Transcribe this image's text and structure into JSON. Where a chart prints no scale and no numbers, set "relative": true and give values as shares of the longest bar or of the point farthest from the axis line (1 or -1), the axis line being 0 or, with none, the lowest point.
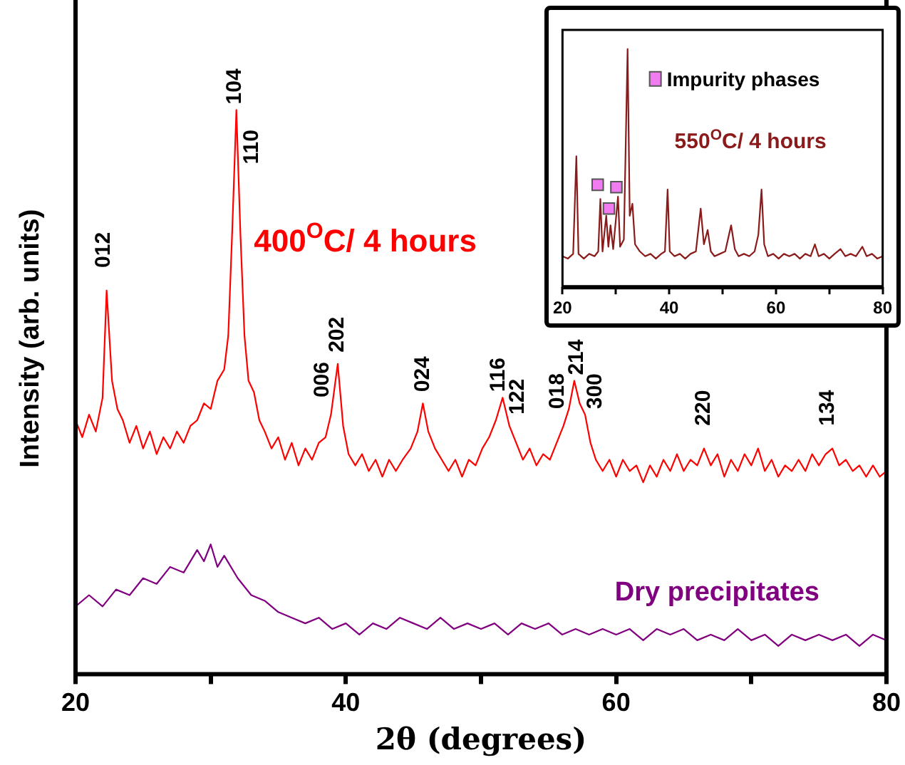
{
  "chart_data": [
    {
      "type": "line",
      "relative": true,
      "xlabel": "2θ (degrees)",
      "ylabel": "Intensity (arb. units)",
      "xlim": [
        20,
        80
      ],
      "xticks": [
        20,
        {
          "value": 30,
          "label": null
        },
        40,
        {
          "value": 50,
          "label": null
        },
        60,
        {
          "value": 70,
          "label": null
        },
        80
      ],
      "legend": false,
      "series": [
        {
          "name": "400$^{O}$C/ 4 hours",
          "color": "#ff0000",
          "x": [
            20,
            20.5,
            21,
            21.5,
            22,
            22.3,
            22.7,
            23.1,
            23.5,
            24,
            24.5,
            25,
            25.5,
            26,
            26.5,
            27,
            27.5,
            28,
            28.5,
            29,
            29.5,
            30,
            30.5,
            31,
            31.3,
            31.6,
            31.9,
            32.2,
            32.5,
            32.8,
            33.2,
            33.6,
            34,
            34.5,
            35,
            35.5,
            36,
            36.5,
            37,
            37.5,
            38,
            38.5,
            38.9,
            39.4,
            39.8,
            40.2,
            40.7,
            41.2,
            41.7,
            42.2,
            42.7,
            43.2,
            43.7,
            44.2,
            44.8,
            45.3,
            45.7,
            46.1,
            46.6,
            47.1,
            47.6,
            48.1,
            48.6,
            49.1,
            49.6,
            50.1,
            50.6,
            51.1,
            51.6,
            52.1,
            52.6,
            53.1,
            53.6,
            54.1,
            54.6,
            55.1,
            55.6,
            56.1,
            56.5,
            56.9,
            57.3,
            57.7,
            58.1,
            58.5,
            59,
            59.5,
            60,
            60.5,
            61,
            61.5,
            62,
            62.5,
            63,
            63.5,
            64,
            64.5,
            65,
            65.5,
            66,
            66.5,
            67,
            67.5,
            68,
            68.5,
            69,
            69.5,
            70,
            70.5,
            71,
            71.5,
            72,
            72.5,
            73,
            73.5,
            74,
            74.5,
            75,
            75.5,
            76,
            76.5,
            77,
            77.5,
            78,
            78.5,
            79,
            79.5,
            80
          ],
          "values": [
            0.45,
            0.42,
            0.46,
            0.43,
            0.49,
            0.68,
            0.52,
            0.47,
            0.45,
            0.41,
            0.44,
            0.4,
            0.43,
            0.39,
            0.42,
            0.4,
            0.43,
            0.41,
            0.44,
            0.45,
            0.48,
            0.47,
            0.52,
            0.54,
            0.6,
            0.79,
            1.0,
            0.78,
            0.6,
            0.52,
            0.5,
            0.45,
            0.43,
            0.4,
            0.42,
            0.38,
            0.41,
            0.37,
            0.4,
            0.38,
            0.41,
            0.42,
            0.46,
            0.55,
            0.44,
            0.39,
            0.37,
            0.39,
            0.36,
            0.38,
            0.35,
            0.38,
            0.36,
            0.38,
            0.4,
            0.43,
            0.48,
            0.43,
            0.4,
            0.38,
            0.36,
            0.38,
            0.35,
            0.38,
            0.37,
            0.4,
            0.42,
            0.45,
            0.49,
            0.44,
            0.41,
            0.38,
            0.4,
            0.37,
            0.39,
            0.38,
            0.41,
            0.44,
            0.47,
            0.52,
            0.48,
            0.46,
            0.41,
            0.38,
            0.36,
            0.38,
            0.35,
            0.38,
            0.36,
            0.37,
            0.34,
            0.37,
            0.35,
            0.38,
            0.36,
            0.39,
            0.36,
            0.38,
            0.37,
            0.4,
            0.37,
            0.39,
            0.35,
            0.38,
            0.36,
            0.39,
            0.37,
            0.4,
            0.36,
            0.38,
            0.35,
            0.37,
            0.36,
            0.38,
            0.36,
            0.39,
            0.37,
            0.39,
            0.4,
            0.37,
            0.38,
            0.36,
            0.37,
            0.35,
            0.37,
            0.35,
            0.36
          ]
        },
        {
          "name": "Dry precipitates",
          "color": "#800080",
          "x": [
            20,
            21,
            22,
            23,
            24,
            25,
            26,
            27,
            28,
            29,
            29.5,
            30,
            30.5,
            31,
            32,
            33,
            34,
            35,
            36,
            37,
            38,
            39,
            40,
            41,
            42,
            43,
            44,
            45,
            46,
            47,
            48,
            49,
            50,
            51,
            52,
            53,
            54,
            55,
            56,
            57,
            58,
            59,
            60,
            61,
            62,
            63,
            64,
            65,
            66,
            67,
            68,
            69,
            70,
            71,
            72,
            73,
            74,
            75,
            76,
            77,
            78,
            79,
            80
          ],
          "values": [
            0.12,
            0.14,
            0.12,
            0.15,
            0.14,
            0.17,
            0.16,
            0.19,
            0.18,
            0.22,
            0.2,
            0.23,
            0.19,
            0.21,
            0.17,
            0.14,
            0.13,
            0.11,
            0.1,
            0.09,
            0.1,
            0.08,
            0.09,
            0.07,
            0.09,
            0.08,
            0.1,
            0.09,
            0.08,
            0.1,
            0.08,
            0.09,
            0.08,
            0.09,
            0.07,
            0.09,
            0.08,
            0.09,
            0.07,
            0.08,
            0.07,
            0.08,
            0.07,
            0.08,
            0.06,
            0.08,
            0.07,
            0.08,
            0.06,
            0.07,
            0.06,
            0.08,
            0.06,
            0.07,
            0.05,
            0.07,
            0.06,
            0.07,
            0.06,
            0.07,
            0.05,
            0.07,
            0.06
          ]
        }
      ],
      "annotations": [
        {
          "text": "012",
          "x": 22.3,
          "y": 0.68
        },
        {
          "text": "104",
          "x": 31.9,
          "y": 1.0
        },
        {
          "text": "110",
          "x": 31.9,
          "y": 1.0
        },
        {
          "text": "006",
          "x": 38.9,
          "y": 0.46
        },
        {
          "text": "202",
          "x": 39.4,
          "y": 0.55
        },
        {
          "text": "024",
          "x": 45.7,
          "y": 0.48
        },
        {
          "text": "116",
          "x": 51.6,
          "y": 0.49
        },
        {
          "text": "122",
          "x": 52.1,
          "y": 0.44
        },
        {
          "text": "018",
          "x": 56.5,
          "y": 0.47
        },
        {
          "text": "214",
          "x": 56.9,
          "y": 0.52
        },
        {
          "text": "300",
          "x": 57.3,
          "y": 0.48
        },
        {
          "text": "220",
          "x": 66.5,
          "y": 0.4
        },
        {
          "text": "134",
          "x": 76,
          "y": 0.4
        }
      ]
    },
    {
      "type": "line",
      "relative": true,
      "xlim": [
        20,
        80
      ],
      "xticks": [
        20,
        {
          "value": 30,
          "label": null
        },
        40,
        {
          "value": 50,
          "label": null
        },
        60,
        {
          "value": 70,
          "label": null
        },
        80
      ],
      "legend": "top right",
      "series": [
        {
          "name": "550$^{O}$C/ 4 hours",
          "color": "#8b1a1a",
          "x": [
            20,
            21,
            22,
            22.6,
            23,
            24,
            25,
            26,
            26.7,
            27.1,
            27.5,
            28.2,
            28.6,
            29,
            29.5,
            30.4,
            30.8,
            31.5,
            32.2,
            32.6,
            33.1,
            33.6,
            34.5,
            35.5,
            36.5,
            37.5,
            38.5,
            39.2,
            39.7,
            40.1,
            41,
            42,
            43,
            44,
            45,
            45.9,
            46.5,
            47.2,
            47.8,
            48.5,
            49.5,
            50.5,
            51.6,
            52.3,
            53,
            54,
            55,
            56,
            56.7,
            57.3,
            57.8,
            58.5,
            59.5,
            60.5,
            61.5,
            62.5,
            63.5,
            64.5,
            65.5,
            66.5,
            67.3,
            68,
            69,
            70,
            71,
            72.1,
            73,
            74,
            75,
            76.2,
            77,
            78,
            79,
            80
          ],
          "values": [
            0.13,
            0.12,
            0.14,
            0.55,
            0.14,
            0.12,
            0.14,
            0.13,
            0.15,
            0.37,
            0.15,
            0.3,
            0.17,
            0.26,
            0.16,
            0.38,
            0.17,
            0.2,
            1.0,
            0.3,
            0.35,
            0.18,
            0.15,
            0.13,
            0.14,
            0.12,
            0.14,
            0.15,
            0.41,
            0.15,
            0.13,
            0.14,
            0.12,
            0.14,
            0.15,
            0.33,
            0.18,
            0.24,
            0.15,
            0.13,
            0.14,
            0.15,
            0.26,
            0.16,
            0.13,
            0.14,
            0.13,
            0.15,
            0.22,
            0.41,
            0.18,
            0.13,
            0.14,
            0.12,
            0.14,
            0.13,
            0.14,
            0.12,
            0.14,
            0.13,
            0.18,
            0.13,
            0.14,
            0.12,
            0.14,
            0.16,
            0.13,
            0.14,
            0.13,
            0.17,
            0.13,
            0.14,
            0.12,
            0.13
          ]
        },
        {
          "name": "Impurity phases",
          "type": "scatter",
          "marker": "square",
          "color": "#f07cf0",
          "x": [
            26.6,
            28.7,
            30.1
          ],
          "values": [
            0.43,
            0.33,
            0.42
          ]
        }
      ]
    }
  ]
}
